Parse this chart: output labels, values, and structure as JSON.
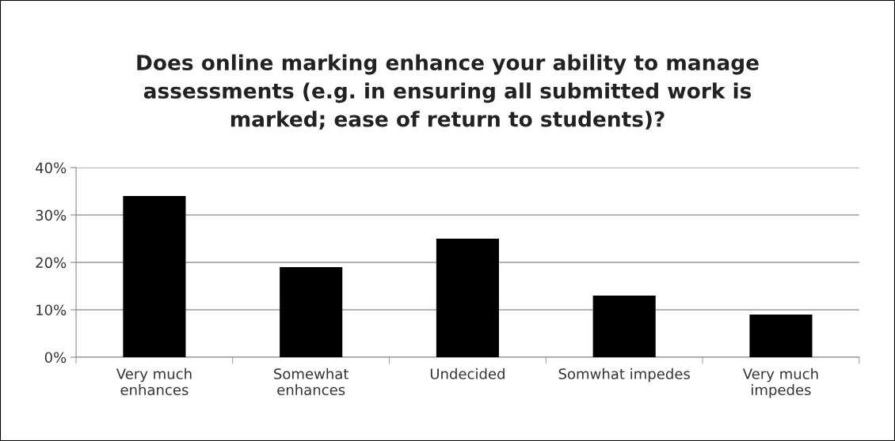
{
  "chart_data": {
    "type": "bar",
    "title": "Does online marking enhance your ability to manage\nassessments (e.g. in ensuring all submitted work is\nmarked; ease of return to students)?",
    "categories": [
      "Very much\nenhances",
      "Somewhat\nenhances",
      "Undecided",
      "Somwhat impedes",
      "Very much\nimpedes"
    ],
    "values": [
      34,
      19,
      25,
      13,
      9
    ],
    "color": "#000000",
    "ylim": [
      0,
      40
    ],
    "yticks": [
      {
        "value": 0,
        "label": "0%"
      },
      {
        "value": 10,
        "label": "10%"
      },
      {
        "value": 20,
        "label": "20%"
      },
      {
        "value": 30,
        "label": "30%"
      },
      {
        "value": 40,
        "label": "40%"
      }
    ],
    "grid": "y",
    "legend": false
  }
}
